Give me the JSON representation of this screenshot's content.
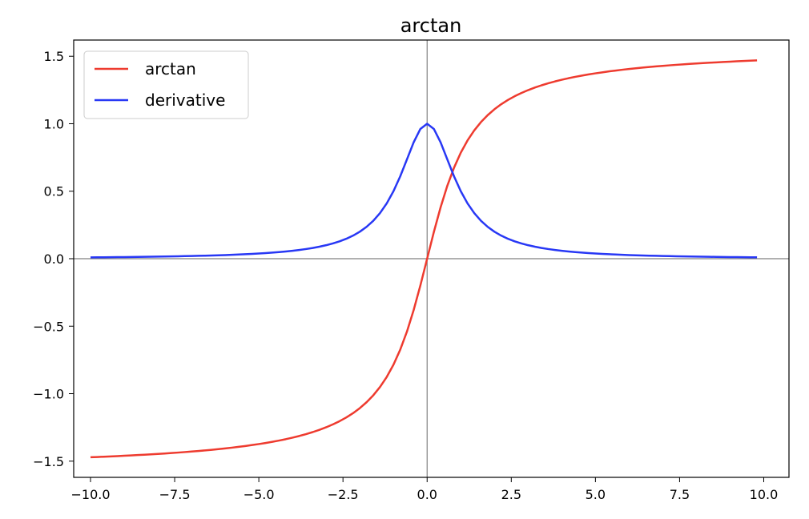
{
  "chart_data": {
    "type": "line",
    "title": "arctan",
    "xlabel": "",
    "ylabel": "",
    "xlim": [
      -10.5,
      10.75
    ],
    "ylim": [
      -1.62,
      1.62
    ],
    "xticks": [
      -10.0,
      -7.5,
      -5.0,
      -2.5,
      0.0,
      2.5,
      5.0,
      7.5,
      10.0
    ],
    "xtick_labels": [
      "−10.0",
      "−7.5",
      "−5.0",
      "−2.5",
      "0.0",
      "2.5",
      "5.0",
      "7.5",
      "10.0"
    ],
    "yticks": [
      1.5,
      1.0,
      0.5,
      0.0,
      -0.5,
      -1.0,
      -1.5
    ],
    "ytick_labels": [
      "1.5",
      "1.0",
      "0.5",
      "0.0",
      "−0.5",
      "−1.0",
      "−1.5"
    ],
    "grid": false,
    "legend": "top-left",
    "reference_lines": {
      "x": 0,
      "y": 0,
      "color": "#808080"
    },
    "series": [
      {
        "name": "arctan",
        "color": "#ee3b2f",
        "x": [
          -10,
          -9.8,
          -9.6,
          -9.4,
          -9.2,
          -9,
          -8.8,
          -8.6,
          -8.4,
          -8.2,
          -8,
          -7.8,
          -7.6,
          -7.4,
          -7.2,
          -7,
          -6.8,
          -6.6,
          -6.4,
          -6.2,
          -6,
          -5.8,
          -5.6,
          -5.4,
          -5.2,
          -5,
          -4.8,
          -4.6,
          -4.4,
          -4.2,
          -4,
          -3.8,
          -3.6,
          -3.4,
          -3.2,
          -3,
          -2.8,
          -2.6,
          -2.4,
          -2.2,
          -2,
          -1.8,
          -1.6,
          -1.4,
          -1.2,
          -1,
          -0.8,
          -0.6,
          -0.4,
          -0.2,
          0,
          0.2,
          0.4,
          0.6,
          0.8,
          1,
          1.2,
          1.4,
          1.6,
          1.8,
          2,
          2.2,
          2.4,
          2.6,
          2.8,
          3,
          3.2,
          3.4,
          3.6,
          3.8,
          4,
          4.2,
          4.4,
          4.6,
          4.8,
          5,
          5.2,
          5.4,
          5.6,
          5.8,
          6,
          6.2,
          6.4,
          6.6,
          6.8,
          7,
          7.2,
          7.4,
          7.6,
          7.8,
          8,
          8.2,
          8.4,
          8.6,
          8.8,
          9,
          9.2,
          9.4,
          9.6,
          9.8
        ],
        "values": [
          -1.4711,
          -1.4691,
          -1.467,
          -1.4648,
          -1.4625,
          -1.4601,
          -1.4576,
          -1.4549,
          -1.4522,
          -1.4493,
          -1.4464,
          -1.4432,
          -1.4399,
          -1.4364,
          -1.4327,
          -1.4289,
          -1.4248,
          -1.4204,
          -1.4158,
          -1.4109,
          -1.4056,
          -1.4,
          -1.394,
          -1.3876,
          -1.3807,
          -1.3734,
          -1.3654,
          -1.3567,
          -1.3474,
          -1.3372,
          -1.3258,
          -1.3135,
          -1.2998,
          -1.2847,
          -1.2679,
          -1.249,
          -1.2278,
          -1.2036,
          -1.176,
          -1.1442,
          -1.1071,
          -1.0637,
          -1.0122,
          -0.9505,
          -0.8761,
          -0.7854,
          -0.6747,
          -0.5404,
          -0.3805,
          -0.1974,
          0.0,
          0.1974,
          0.3805,
          0.5404,
          0.6747,
          0.7854,
          0.8761,
          0.9505,
          1.0122,
          1.0637,
          1.1071,
          1.1442,
          1.176,
          1.2036,
          1.2278,
          1.249,
          1.2679,
          1.2847,
          1.2998,
          1.3135,
          1.3258,
          1.3372,
          1.3474,
          1.3567,
          1.3654,
          1.3734,
          1.3807,
          1.3876,
          1.394,
          1.4,
          1.4056,
          1.4109,
          1.4158,
          1.4204,
          1.4248,
          1.4289,
          1.4327,
          1.4364,
          1.4399,
          1.4432,
          1.4464,
          1.4493,
          1.4522,
          1.4549,
          1.4576,
          1.4601,
          1.4625,
          1.4648,
          1.467,
          1.4691
        ]
      },
      {
        "name": "derivative",
        "color": "#2838f5",
        "x": [
          -10,
          -9.8,
          -9.6,
          -9.4,
          -9.2,
          -9,
          -8.8,
          -8.6,
          -8.4,
          -8.2,
          -8,
          -7.8,
          -7.6,
          -7.4,
          -7.2,
          -7,
          -6.8,
          -6.6,
          -6.4,
          -6.2,
          -6,
          -5.8,
          -5.6,
          -5.4,
          -5.2,
          -5,
          -4.8,
          -4.6,
          -4.4,
          -4.2,
          -4,
          -3.8,
          -3.6,
          -3.4,
          -3.2,
          -3,
          -2.8,
          -2.6,
          -2.4,
          -2.2,
          -2,
          -1.8,
          -1.6,
          -1.4,
          -1.2,
          -1,
          -0.8,
          -0.6,
          -0.4,
          -0.2,
          0,
          0.2,
          0.4,
          0.6,
          0.8,
          1,
          1.2,
          1.4,
          1.6,
          1.8,
          2,
          2.2,
          2.4,
          2.6,
          2.8,
          3,
          3.2,
          3.4,
          3.6,
          3.8,
          4,
          4.2,
          4.4,
          4.6,
          4.8,
          5,
          5.2,
          5.4,
          5.6,
          5.8,
          6,
          6.2,
          6.4,
          6.6,
          6.8,
          7,
          7.2,
          7.4,
          7.6,
          7.8,
          8,
          8.2,
          8.4,
          8.6,
          8.8,
          9,
          9.2,
          9.4,
          9.6,
          9.8
        ],
        "values": [
          0.0099,
          0.0103,
          0.0107,
          0.0112,
          0.0117,
          0.0122,
          0.0127,
          0.0133,
          0.014,
          0.0147,
          0.0154,
          0.0162,
          0.017,
          0.0179,
          0.0189,
          0.02,
          0.0212,
          0.0224,
          0.0238,
          0.0253,
          0.027,
          0.0289,
          0.0309,
          0.0332,
          0.0357,
          0.0385,
          0.0416,
          0.0451,
          0.0491,
          0.0536,
          0.0588,
          0.0648,
          0.0716,
          0.0796,
          0.089,
          0.1,
          0.1131,
          0.1289,
          0.1479,
          0.1712,
          0.2,
          0.2358,
          0.2809,
          0.3378,
          0.4098,
          0.5,
          0.6098,
          0.7353,
          0.8621,
          0.9615,
          1.0,
          0.9615,
          0.8621,
          0.7353,
          0.6098,
          0.5,
          0.4098,
          0.3378,
          0.2809,
          0.2358,
          0.2,
          0.1712,
          0.1479,
          0.1289,
          0.1131,
          0.1,
          0.089,
          0.0796,
          0.0716,
          0.0648,
          0.0588,
          0.0536,
          0.0491,
          0.0451,
          0.0416,
          0.0385,
          0.0357,
          0.0332,
          0.0309,
          0.0289,
          0.027,
          0.0253,
          0.0238,
          0.0224,
          0.0212,
          0.02,
          0.0189,
          0.0179,
          0.017,
          0.0162,
          0.0154,
          0.0147,
          0.014,
          0.0133,
          0.0127,
          0.0122,
          0.0117,
          0.0112,
          0.0107,
          0.0103
        ]
      }
    ]
  }
}
